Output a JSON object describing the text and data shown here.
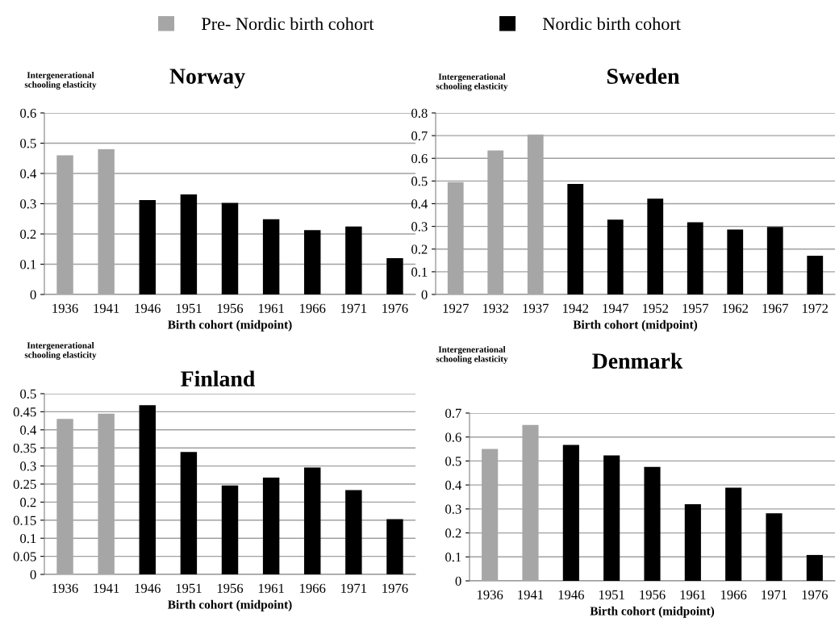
{
  "chart_data": [
    {
      "type": "bar",
      "title": "Norway",
      "ylabel": "Intergenerational\nschooling elasticity",
      "xlabel": "Birth cohort (midpoint)",
      "categories": [
        "1936",
        "1941",
        "1946",
        "1951",
        "1956",
        "1961",
        "1966",
        "1971",
        "1976"
      ],
      "series": [
        {
          "name": "Pre- Nordic birth cohort",
          "color": "#a6a6a6",
          "values": [
            0.46,
            0.48,
            null,
            null,
            null,
            null,
            null,
            null,
            null
          ]
        },
        {
          "name": "Nordic birth cohort",
          "color": "#000000",
          "values": [
            null,
            null,
            0.312,
            0.331,
            0.303,
            0.249,
            0.213,
            0.225,
            0.12
          ]
        }
      ],
      "ylim": [
        0,
        0.6
      ],
      "yticks": [
        0,
        0.1,
        0.2,
        0.3,
        0.4,
        0.5,
        0.6
      ],
      "grid": "y",
      "legend": "top"
    },
    {
      "type": "bar",
      "title": "Sweden",
      "ylabel": "Intergenerational\nschooling elasticity",
      "xlabel": "Birth cohort (midpoint)",
      "categories": [
        "1927",
        "1932",
        "1937",
        "1942",
        "1947",
        "1952",
        "1957",
        "1962",
        "1967",
        "1972"
      ],
      "series": [
        {
          "color": "#a6a6a6",
          "values": [
            0.495,
            0.635,
            0.705,
            null,
            null,
            null,
            null,
            null,
            null,
            null
          ]
        },
        {
          "color": "#000000",
          "values": [
            null,
            null,
            null,
            0.487,
            0.33,
            0.422,
            0.318,
            0.286,
            0.298,
            0.171
          ]
        }
      ],
      "ylim": [
        0,
        0.8
      ],
      "yticks": [
        0,
        0.1,
        0.2,
        0.3,
        0.4,
        0.5,
        0.6,
        0.7,
        0.8
      ],
      "grid": "y"
    },
    {
      "type": "bar",
      "title": "Finland",
      "ylabel": "Intergenerational\nschooling elasticity",
      "xlabel": "Birth cohort (midpoint)",
      "categories": [
        "1936",
        "1941",
        "1946",
        "1951",
        "1956",
        "1961",
        "1966",
        "1971",
        "1976"
      ],
      "series": [
        {
          "color": "#a6a6a6",
          "values": [
            0.43,
            0.445,
            null,
            null,
            null,
            null,
            null,
            null,
            null
          ]
        },
        {
          "color": "#000000",
          "values": [
            null,
            null,
            0.468,
            0.339,
            0.246,
            0.268,
            0.296,
            0.233,
            0.153
          ]
        }
      ],
      "ylim": [
        0,
        0.5
      ],
      "yticks": [
        0,
        0.05,
        0.1,
        0.15,
        0.2,
        0.25,
        0.3,
        0.35,
        0.4,
        0.45,
        0.5
      ],
      "grid": "y"
    },
    {
      "type": "bar",
      "title": "Denmark",
      "ylabel": "Intergenerational\nschooling elasticity",
      "xlabel": "Birth cohort (midpoint)",
      "categories": [
        "1936",
        "1941",
        "1946",
        "1951",
        "1956",
        "1961",
        "1966",
        "1971",
        "1976"
      ],
      "series": [
        {
          "color": "#a6a6a6",
          "values": [
            0.55,
            0.65,
            null,
            null,
            null,
            null,
            null,
            null,
            null
          ]
        },
        {
          "color": "#000000",
          "values": [
            null,
            null,
            0.567,
            0.523,
            0.475,
            0.32,
            0.389,
            0.282,
            0.108
          ]
        }
      ],
      "ylim": [
        0,
        0.7
      ],
      "yticks": [
        0,
        0.1,
        0.2,
        0.3,
        0.4,
        0.5,
        0.6,
        0.7
      ],
      "grid": "y"
    }
  ]
}
